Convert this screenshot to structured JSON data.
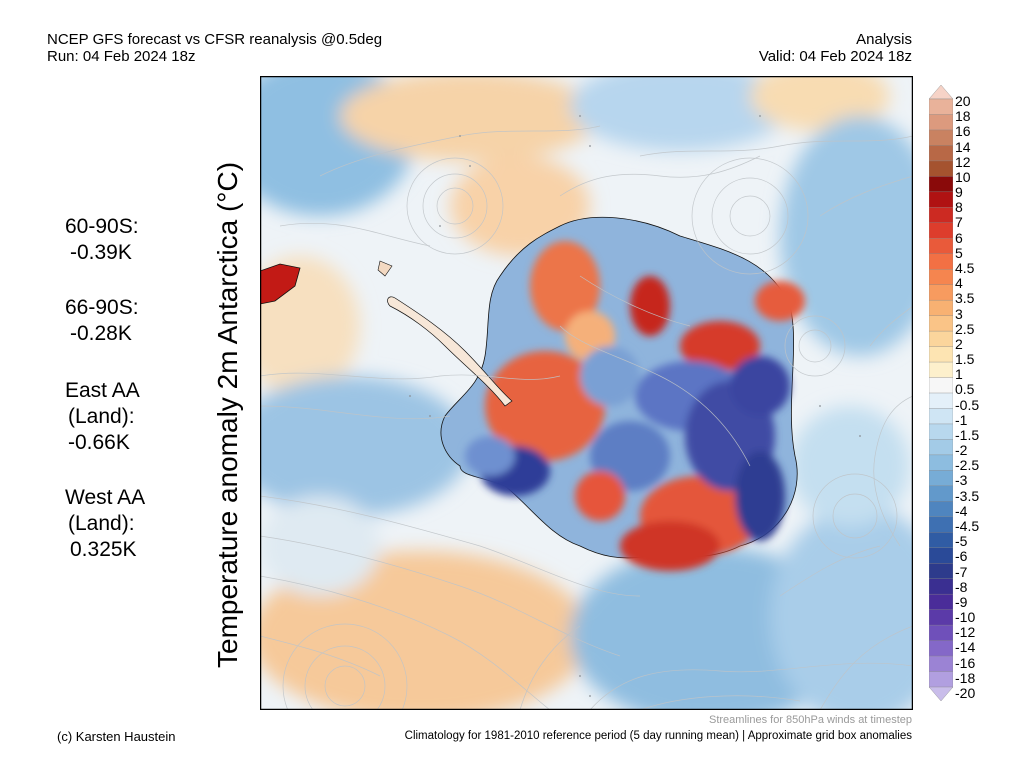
{
  "header": {
    "title": "NCEP GFS forecast vs CFSR reanalysis @0.5deg",
    "run": "Run: 04 Feb 2024 18z",
    "mode": "Analysis",
    "valid": "Valid: 04 Feb 2024 18z"
  },
  "stats": [
    {
      "label": "60-90S:",
      "value": "-0.39K"
    },
    {
      "label": "66-90S:",
      "value": "-0.28K"
    },
    {
      "label": "East AA",
      "label2": "(Land):",
      "value": "-0.66K"
    },
    {
      "label": "West AA",
      "label2": "(Land):",
      "value": "0.325K"
    }
  ],
  "map": {
    "ylabel": "Temperature anomaly 2m Antarctica (°C)"
  },
  "colorbar": {
    "labels": [
      "20",
      "18",
      "16",
      "14",
      "12",
      "10",
      "9",
      "8",
      "7",
      "6",
      "5",
      "4.5",
      "4",
      "3.5",
      "3",
      "2.5",
      "2",
      "1.5",
      "1",
      "0.5",
      "-0.5",
      "-1",
      "-1.5",
      "-2",
      "-2.5",
      "-3",
      "-3.5",
      "-4",
      "-4.5",
      "-5",
      "-6",
      "-7",
      "-8",
      "-9",
      "-10",
      "-12",
      "-14",
      "-16",
      "-18",
      "-20"
    ],
    "colors": [
      "#f6d3c7",
      "#e9b29a",
      "#dc9a7e",
      "#c98261",
      "#b86846",
      "#a5532f",
      "#8a0a0a",
      "#b01212",
      "#cc2a22",
      "#dd3d2c",
      "#e95a3a",
      "#f27044",
      "#f5854f",
      "#f79b5f",
      "#f8b172",
      "#fac487",
      "#fbd59c",
      "#fde4b2",
      "#fdf0cc",
      "#f7f7f7",
      "#e4f0f9",
      "#cfe5f4",
      "#b8d8ee",
      "#a3cbe7",
      "#8dbde0",
      "#77acd6",
      "#6299cb",
      "#4f85bf",
      "#3e70b2",
      "#305ca4",
      "#2a4a98",
      "#2d3b8c",
      "#3a2f91",
      "#4a2c99",
      "#5b3aa8",
      "#6f50ba",
      "#8468c8",
      "#9b83d4",
      "#b19fe0",
      "#c9bdea"
    ]
  },
  "footer": {
    "credit": "(c) Karsten Haustein",
    "streamlines": "Streamlines for 850hPa winds at timestep",
    "climatology": "Climatology for 1981-2010 reference period (5 day running mean) | Approximate grid box anomalies"
  }
}
